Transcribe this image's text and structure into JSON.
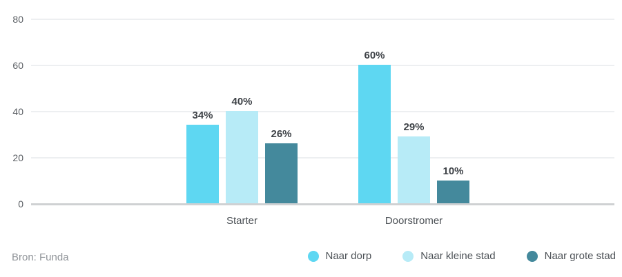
{
  "chart_data": {
    "type": "bar",
    "title": "",
    "categories": [
      "Starter",
      "Doorstromer"
    ],
    "series": [
      {
        "name": "Naar dorp",
        "color": "#5ed7f2",
        "values": [
          34,
          60
        ],
        "labels": [
          "34%",
          "60%"
        ]
      },
      {
        "name": "Naar kleine stad",
        "color": "#b7ebf7",
        "values": [
          40,
          29
        ],
        "labels": [
          "40%",
          "29%"
        ]
      },
      {
        "name": "Naar grote stad",
        "color": "#44899c",
        "values": [
          26,
          10
        ],
        "labels": [
          "26%",
          "10%"
        ]
      }
    ],
    "y_ticks": [
      0,
      20,
      40,
      60,
      80
    ],
    "ylim": [
      0,
      80
    ],
    "unit": "%",
    "grid": true,
    "legend_position": "bottom-right",
    "source": "Bron: Funda"
  }
}
